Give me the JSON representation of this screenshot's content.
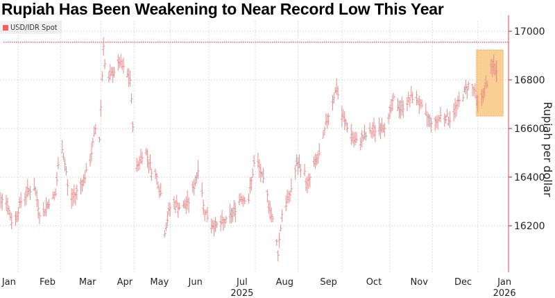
{
  "title": "Rupiah Has Been Weakening to Near Record Low This Year",
  "chart_data": {
    "type": "bar",
    "subtype": "high-low price bars",
    "title": "Rupiah Has Been Weakening to Near Record Low This Year",
    "legend": [
      {
        "name": "USD/IDR Spot",
        "color": "#f0605f"
      }
    ],
    "legend_placement": "top-left",
    "ylabel": "Rupiah per dollar",
    "xlabel": "",
    "ylim": [
      16000,
      17040
    ],
    "y_axis_side": "right",
    "yticks": [
      16200,
      16400,
      16600,
      16800,
      17000
    ],
    "xlim": [
      "2025-01-01",
      "2026-01-24"
    ],
    "xticks": [
      {
        "label": "Jan",
        "date": "2025-01-15"
      },
      {
        "label": "Feb",
        "date": "2025-02-13"
      },
      {
        "label": "Mar",
        "date": "2025-03-15"
      },
      {
        "label": "Apr",
        "date": "2025-04-12"
      },
      {
        "label": "May",
        "date": "2025-05-08"
      },
      {
        "label": "Jun",
        "date": "2025-06-04"
      },
      {
        "label": "Jul",
        "date": "2025-07-09",
        "year": "2025"
      },
      {
        "label": "Aug",
        "date": "2025-08-10"
      },
      {
        "label": "Sep",
        "date": "2025-09-12"
      },
      {
        "label": "Oct",
        "date": "2025-10-16"
      },
      {
        "label": "Nov",
        "date": "2025-11-19"
      },
      {
        "label": "Dec",
        "date": "2025-12-22"
      },
      {
        "label": "Jan",
        "date": "2026-01-22",
        "year": "2026"
      }
    ],
    "grid": true,
    "reference_line": {
      "value": 16955,
      "style": "dotted",
      "color": "#f0506a"
    },
    "highlight_box": {
      "from": "2026-01-01",
      "to": "2026-01-21",
      "ymin": 16651,
      "ymax": 16923,
      "color": "#f7b55a"
    },
    "series": [
      {
        "name": "USD/IDR Spot",
        "color": "#e88a8a",
        "points": [
          [
            "2025-01-02",
            16360
          ],
          [
            "2025-01-08",
            16330
          ],
          [
            "2025-01-13",
            16300
          ],
          [
            "2025-01-18",
            16200
          ],
          [
            "2025-01-24",
            16300
          ],
          [
            "2025-01-29",
            16340
          ],
          [
            "2025-02-03",
            16360
          ],
          [
            "2025-02-08",
            16230
          ],
          [
            "2025-02-14",
            16300
          ],
          [
            "2025-02-19",
            16330
          ],
          [
            "2025-02-23",
            16560
          ],
          [
            "2025-02-27",
            16420
          ],
          [
            "2025-03-01",
            16300
          ],
          [
            "2025-03-06",
            16330
          ],
          [
            "2025-03-11",
            16380
          ],
          [
            "2025-03-16",
            16440
          ],
          [
            "2025-03-21",
            16600
          ],
          [
            "2025-03-24",
            16560
          ],
          [
            "2025-03-27",
            16950
          ],
          [
            "2025-03-29",
            16780
          ],
          [
            "2025-04-03",
            16830
          ],
          [
            "2025-04-08",
            16870
          ],
          [
            "2025-04-14",
            16820
          ],
          [
            "2025-04-16",
            16800
          ],
          [
            "2025-04-18",
            16620
          ],
          [
            "2025-04-21",
            16440
          ],
          [
            "2025-04-27",
            16520
          ],
          [
            "2025-05-02",
            16430
          ],
          [
            "2025-05-06",
            16400
          ],
          [
            "2025-05-10",
            16310
          ],
          [
            "2025-05-12",
            16180
          ],
          [
            "2025-05-17",
            16300
          ],
          [
            "2025-05-25",
            16270
          ],
          [
            "2025-05-30",
            16300
          ],
          [
            "2025-06-04",
            16380
          ],
          [
            "2025-06-07",
            16470
          ],
          [
            "2025-06-10",
            16280
          ],
          [
            "2025-06-15",
            16210
          ],
          [
            "2025-06-20",
            16200
          ],
          [
            "2025-06-28",
            16220
          ],
          [
            "2025-07-03",
            16260
          ],
          [
            "2025-07-08",
            16320
          ],
          [
            "2025-07-14",
            16310
          ],
          [
            "2025-07-19",
            16490
          ],
          [
            "2025-07-24",
            16400
          ],
          [
            "2025-07-29",
            16300
          ],
          [
            "2025-08-03",
            16170
          ],
          [
            "2025-08-05",
            16090
          ],
          [
            "2025-08-08",
            16250
          ],
          [
            "2025-08-14",
            16330
          ],
          [
            "2025-08-19",
            16450
          ],
          [
            "2025-08-24",
            16440
          ],
          [
            "2025-08-27",
            16360
          ],
          [
            "2025-09-01",
            16450
          ],
          [
            "2025-09-06",
            16500
          ],
          [
            "2025-09-09",
            16590
          ],
          [
            "2025-09-13",
            16680
          ],
          [
            "2025-09-18",
            16770
          ],
          [
            "2025-09-22",
            16650
          ],
          [
            "2025-09-27",
            16600
          ],
          [
            "2025-10-02",
            16540
          ],
          [
            "2025-10-10",
            16570
          ],
          [
            "2025-10-18",
            16600
          ],
          [
            "2025-10-26",
            16620
          ],
          [
            "2025-10-31",
            16720
          ],
          [
            "2025-11-05",
            16680
          ],
          [
            "2025-11-10",
            16710
          ],
          [
            "2025-11-16",
            16740
          ],
          [
            "2025-11-21",
            16680
          ],
          [
            "2025-11-26",
            16640
          ],
          [
            "2025-12-01",
            16620
          ],
          [
            "2025-12-06",
            16660
          ],
          [
            "2025-12-12",
            16640
          ],
          [
            "2025-12-17",
            16690
          ],
          [
            "2025-12-22",
            16740
          ],
          [
            "2025-12-26",
            16780
          ],
          [
            "2025-12-30",
            16760
          ],
          [
            "2026-01-02",
            16700
          ],
          [
            "2026-01-06",
            16740
          ],
          [
            "2026-01-09",
            16790
          ],
          [
            "2026-01-12",
            16840
          ],
          [
            "2026-01-14",
            16860
          ],
          [
            "2026-01-16",
            16830
          ]
        ]
      }
    ]
  }
}
